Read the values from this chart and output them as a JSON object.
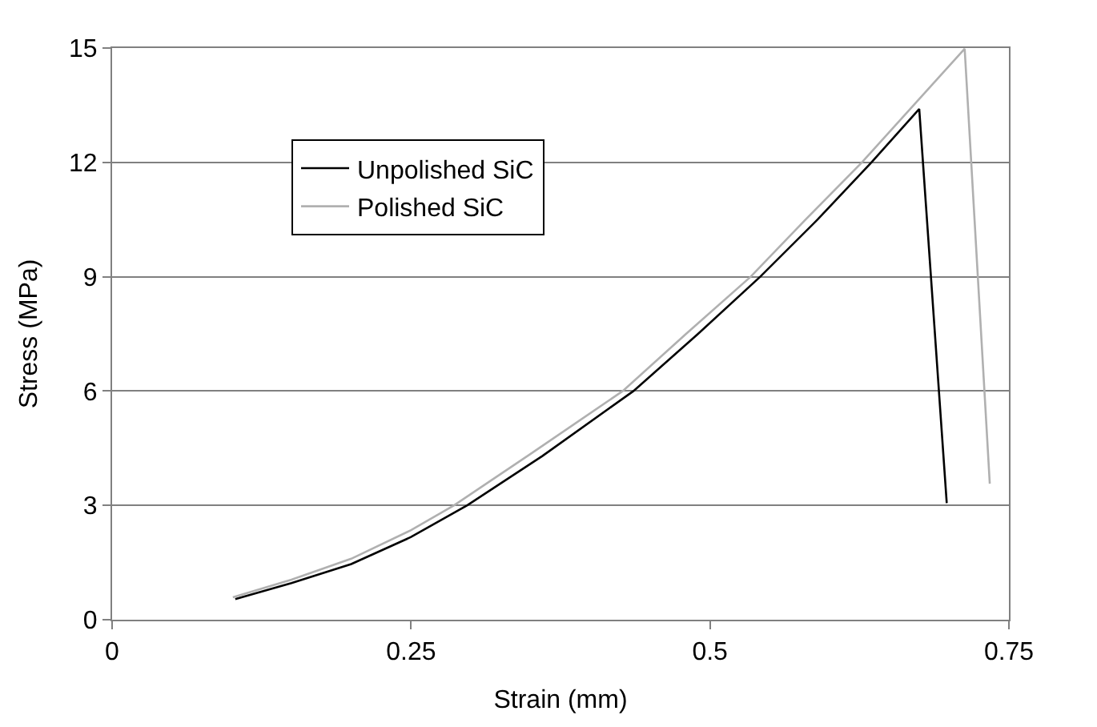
{
  "chart_data": {
    "type": "line",
    "xlabel": "Strain (mm)",
    "ylabel": "Stress (MPa)",
    "series": [
      {
        "name": "Unpolished SiC",
        "color": "#000000",
        "x": [
          0.103,
          0.15,
          0.2,
          0.25,
          0.297,
          0.36,
          0.436,
          0.49,
          0.542,
          0.59,
          0.635,
          0.675,
          0.698
        ],
        "values": [
          0.54,
          0.96,
          1.46,
          2.17,
          3.0,
          4.3,
          6.0,
          7.5,
          9.0,
          10.5,
          12.0,
          13.4,
          3.06
        ]
      },
      {
        "name": "Polished SiC",
        "color": "#b0b0b0",
        "x": [
          0.101,
          0.15,
          0.2,
          0.25,
          0.286,
          0.35,
          0.427,
          0.48,
          0.534,
          0.58,
          0.627,
          0.713,
          0.734
        ],
        "values": [
          0.59,
          1.05,
          1.6,
          2.35,
          3.0,
          4.35,
          6.0,
          7.5,
          9.0,
          10.5,
          12.0,
          14.98,
          3.57
        ]
      }
    ],
    "xlim": [
      0,
      0.75
    ],
    "xticks": [
      0,
      0.25,
      0.5,
      0.75
    ],
    "ylim": [
      0,
      15
    ],
    "yticks": [
      0,
      3,
      6,
      9,
      12,
      15
    ],
    "grid": "y",
    "legend": "top left",
    "marker": "none",
    "line_style": "solid"
  }
}
